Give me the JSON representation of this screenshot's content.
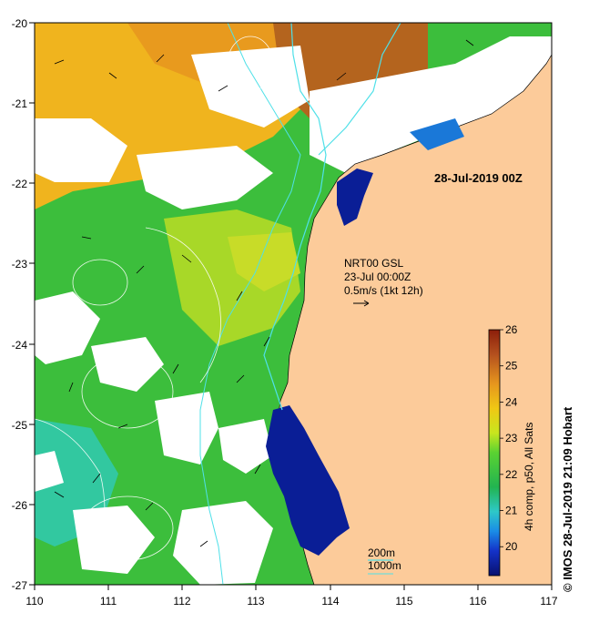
{
  "map": {
    "title": "28-Jul-2019 00Z",
    "lon_ticks": [
      "110",
      "111",
      "112",
      "113",
      "114",
      "115",
      "116",
      "117"
    ],
    "lat_ticks": [
      "-20",
      "-21",
      "-22",
      "-23",
      "-24",
      "-25",
      "-26",
      "-27"
    ],
    "lon_range": [
      110,
      117
    ],
    "lat_range": [
      -27,
      -20
    ]
  },
  "current_legend": {
    "line1": "NRT00 GSL",
    "line2": "23-Jul 00:00Z",
    "line3": "0.5m/s (1kt 12h)"
  },
  "depth_legend": {
    "shallow": "200m",
    "deep": "1000m"
  },
  "colorbar": {
    "label": "4h comp, p50, All Sats",
    "min": 19.2,
    "max": 26,
    "ticks": [
      "20",
      "21",
      "22",
      "23",
      "24",
      "25",
      "26"
    ]
  },
  "credit": "© IMOS 28-Jul-2019 21:09 Hobart",
  "colors": {
    "land": "#fccb9a",
    "coast_line": "#000000",
    "isobath_200": "#4fe0e8",
    "contour": "#ffffff"
  }
}
